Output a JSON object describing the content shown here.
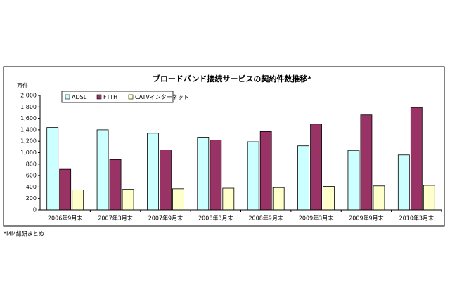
{
  "chart_data": {
    "type": "bar",
    "title": "ブロードバンド接続サービスの契約件数推移*",
    "y_label": "万件",
    "note": "*MM総研まとめ",
    "categories": [
      "2006年9月末",
      "2007年3月末",
      "2007年9月末",
      "2008年3月末",
      "2008年9月末",
      "2009年3月末",
      "2009年9月末",
      "2010年3月末"
    ],
    "series": [
      {
        "name": "ADSL",
        "color": "#ccffff",
        "values": [
          1440,
          1400,
          1340,
          1270,
          1190,
          1120,
          1040,
          960
        ]
      },
      {
        "name": "FTTH",
        "color": "#993366",
        "values": [
          710,
          880,
          1050,
          1220,
          1370,
          1500,
          1660,
          1790
        ]
      },
      {
        "name": "CATVインターネット",
        "color": "#ffffcc",
        "values": [
          350,
          360,
          370,
          380,
          390,
          410,
          420,
          430
        ]
      }
    ],
    "ylim": [
      0,
      2000
    ],
    "yticks": [
      0,
      200,
      400,
      600,
      800,
      {
        "value": 1000,
        "label": "1,000"
      },
      {
        "value": 1200,
        "label": "1,200"
      },
      {
        "value": 1400,
        "label": "1,400"
      },
      {
        "value": 1600,
        "label": "1,600"
      },
      {
        "value": 1800,
        "label": "1,800"
      },
      {
        "value": 2000,
        "label": "2,000"
      }
    ],
    "grid": false,
    "legend": "top-left"
  }
}
